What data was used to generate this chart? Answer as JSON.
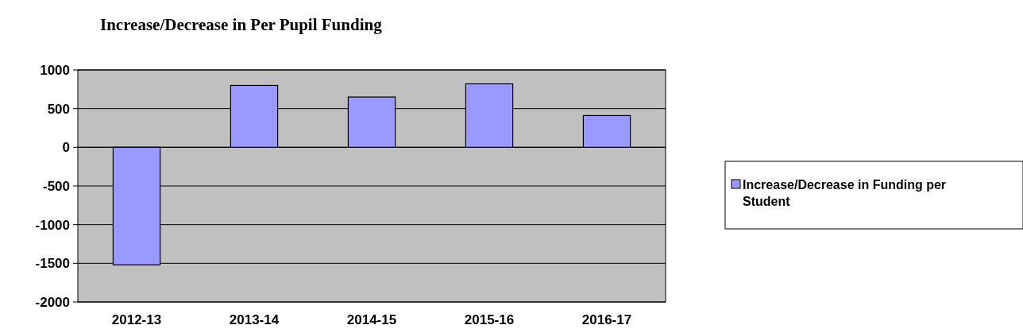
{
  "chart_data": {
    "type": "bar",
    "title": "Increase/Decrease in Per Pupil Funding",
    "categories": [
      "2012-13",
      "2013-14",
      "2014-15",
      "2015-16",
      "2016-17"
    ],
    "series": [
      {
        "name": "Increase/Decrease in Funding per Student",
        "color": "#9999ff",
        "values": [
          -1520,
          800,
          650,
          820,
          410
        ]
      }
    ],
    "ylim": [
      -2000,
      1000
    ],
    "yticks": [
      -2000,
      -1500,
      -1000,
      -500,
      0,
      500,
      1000
    ],
    "grid": "y",
    "legend": "right"
  }
}
